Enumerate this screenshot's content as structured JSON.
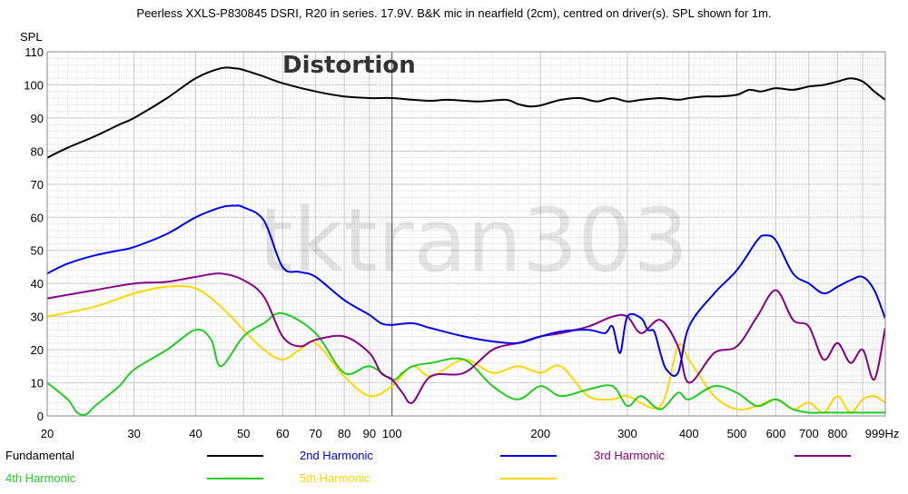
{
  "chart_data": {
    "type": "line",
    "title": "Peerless XXLS-P830845 DSRI, R20 in series. 17.9V. B&K mic in nearfield (2cm), centred on driver(s). SPL shown for 1m.",
    "ylabel": "SPL",
    "xunit": "Hz",
    "xscale": "log",
    "xlim": [
      20,
      1000
    ],
    "ylim": [
      0,
      110
    ],
    "grid": true,
    "legend_position": "bottom",
    "annotation": "Distortion",
    "watermark": "tktran303",
    "x_ticks": [
      {
        "value": 20,
        "label": "20"
      },
      {
        "value": 30,
        "label": "30"
      },
      {
        "value": 40,
        "label": "40"
      },
      {
        "value": 50,
        "label": "50"
      },
      {
        "value": 60,
        "label": "60"
      },
      {
        "value": 70,
        "label": "70"
      },
      {
        "value": 80,
        "label": "80"
      },
      {
        "value": 90,
        "label": "90"
      },
      {
        "value": 100,
        "label": "100"
      },
      {
        "value": 200,
        "label": "200"
      },
      {
        "value": 300,
        "label": "300"
      },
      {
        "value": 400,
        "label": "400"
      },
      {
        "value": 500,
        "label": "500"
      },
      {
        "value": 600,
        "label": "600"
      },
      {
        "value": 700,
        "label": "700"
      },
      {
        "value": 800,
        "label": "800"
      },
      {
        "value": 999,
        "label": "999Hz"
      }
    ],
    "y_ticks": [
      0,
      10,
      20,
      30,
      40,
      50,
      60,
      70,
      80,
      90,
      100,
      110
    ],
    "series": [
      {
        "name": "Fundamental",
        "color": "#000000",
        "x": [
          20,
          22,
          25,
          28,
          30,
          35,
          40,
          45,
          48,
          50,
          55,
          60,
          70,
          80,
          90,
          100,
          110,
          120,
          130,
          150,
          170,
          180,
          190,
          200,
          220,
          240,
          260,
          280,
          300,
          320,
          350,
          380,
          400,
          430,
          460,
          500,
          530,
          560,
          600,
          650,
          700,
          750,
          800,
          850,
          900,
          950,
          999
        ],
        "y": [
          78,
          81,
          84.5,
          88,
          90,
          96,
          102,
          105,
          105,
          104.5,
          102.5,
          100.5,
          98,
          96.5,
          96,
          96,
          95.5,
          95.2,
          95.5,
          95,
          95.5,
          94.2,
          93.5,
          93.8,
          95.5,
          96,
          95,
          96,
          95,
          95.5,
          96,
          95.5,
          96,
          96.5,
          96.5,
          97,
          98.5,
          98,
          99,
          98.5,
          99.5,
          100,
          101,
          102,
          101,
          98,
          95.5
        ]
      },
      {
        "name": "2nd Harmonic",
        "color": "#0000ee",
        "x": [
          20,
          22,
          25,
          28,
          30,
          35,
          40,
          45,
          48,
          50,
          55,
          60,
          65,
          70,
          80,
          90,
          95,
          100,
          110,
          120,
          140,
          160,
          180,
          200,
          220,
          250,
          270,
          280,
          290,
          300,
          320,
          330,
          340,
          350,
          360,
          380,
          400,
          450,
          500,
          550,
          570,
          600,
          650,
          700,
          750,
          800,
          850,
          900,
          950,
          999
        ],
        "y": [
          43,
          46,
          48.5,
          50,
          51,
          55,
          60,
          63,
          63.5,
          63,
          59,
          45,
          43.5,
          42,
          35,
          30.5,
          28,
          27.5,
          28,
          26.5,
          24,
          22.5,
          22,
          24,
          25.5,
          26,
          25,
          27,
          19,
          30,
          29.5,
          26,
          25.5,
          19,
          14,
          13,
          27,
          37,
          44,
          53,
          54.5,
          53,
          43,
          40,
          37,
          39,
          41,
          42,
          38,
          29.5
        ]
      },
      {
        "name": "3rd Harmonic",
        "color": "#880088",
        "x": [
          20,
          25,
          30,
          35,
          40,
          45,
          50,
          55,
          60,
          65,
          70,
          80,
          90,
          95,
          100,
          105,
          110,
          120,
          140,
          160,
          180,
          200,
          220,
          250,
          280,
          300,
          320,
          350,
          380,
          400,
          450,
          500,
          550,
          600,
          650,
          700,
          750,
          800,
          850,
          900,
          950,
          999
        ],
        "y": [
          35.5,
          38,
          40,
          40.5,
          42,
          43,
          41,
          36,
          24,
          21,
          23,
          24,
          19,
          13,
          11,
          7,
          4,
          12,
          13,
          20,
          22,
          24,
          25,
          27,
          30,
          30,
          25,
          29,
          21,
          10,
          19,
          21,
          30,
          38,
          29,
          27,
          17,
          22,
          16,
          20,
          11,
          26.5
        ]
      },
      {
        "name": "4th Harmonic",
        "color": "#22cc22",
        "x": [
          20,
          22,
          23,
          24,
          25,
          28,
          30,
          35,
          40,
          43,
          45,
          50,
          55,
          60,
          70,
          80,
          90,
          100,
          105,
          110,
          120,
          140,
          160,
          180,
          200,
          220,
          250,
          280,
          300,
          320,
          350,
          380,
          400,
          450,
          500,
          550,
          600,
          650,
          700,
          750,
          800,
          850,
          900,
          950,
          999
        ],
        "y": [
          10,
          5,
          1,
          0.5,
          3,
          9,
          14,
          20,
          26,
          23,
          15,
          24,
          28,
          31,
          25,
          13,
          15,
          11,
          13,
          15,
          16,
          17,
          9,
          5,
          9,
          6,
          8,
          9,
          3,
          6,
          2,
          7,
          5,
          9,
          7,
          3,
          5,
          2,
          1,
          1,
          1,
          1,
          1,
          1,
          1
        ]
      },
      {
        "name": "5th Harmonic",
        "color": "#ffd700",
        "x": [
          20,
          25,
          30,
          35,
          40,
          45,
          50,
          55,
          60,
          65,
          70,
          80,
          90,
          100,
          110,
          120,
          140,
          160,
          180,
          200,
          220,
          250,
          280,
          300,
          350,
          380,
          400,
          450,
          500,
          550,
          600,
          650,
          700,
          750,
          800,
          850,
          900,
          950,
          999
        ],
        "y": [
          30,
          33,
          37,
          39,
          38.5,
          33,
          26,
          20,
          17,
          20,
          22,
          12,
          6,
          9,
          15,
          12,
          17,
          13,
          15,
          13,
          15,
          6,
          5,
          6,
          3,
          21,
          17,
          6,
          2,
          3,
          5,
          2,
          4,
          1,
          6,
          1,
          5,
          6,
          4
        ]
      }
    ]
  }
}
